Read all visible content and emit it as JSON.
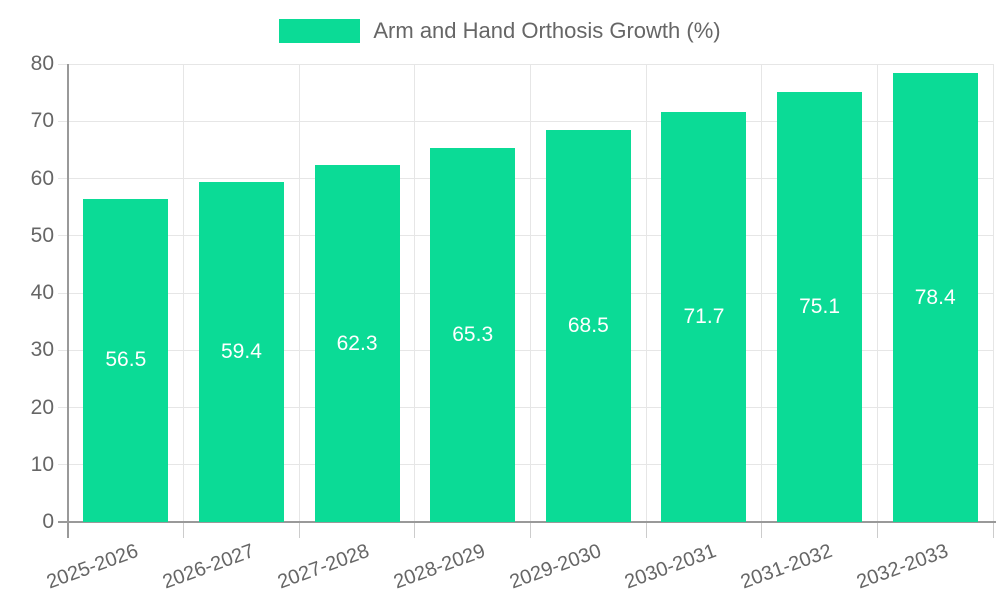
{
  "legend": {
    "label": "Arm and Hand Orthosis Growth (%)"
  },
  "chart_data": {
    "type": "bar",
    "title": "Arm and Hand Orthosis Growth (%)",
    "categories": [
      "2025-2026",
      "2026-2027",
      "2027-2028",
      "2028-2029",
      "2029-2030",
      "2030-2031",
      "2031-2032",
      "2032-2033"
    ],
    "values": [
      56.5,
      59.4,
      62.3,
      65.3,
      68.5,
      71.7,
      75.1,
      78.4
    ],
    "value_labels": [
      "56.5",
      "59.4",
      "62.3",
      "65.3",
      "68.5",
      "71.7",
      "75.1",
      "78.4"
    ],
    "xlabel": "",
    "ylabel": "",
    "ylim": [
      0,
      80
    ],
    "yticks": [
      0,
      10,
      20,
      30,
      40,
      50,
      60,
      70,
      80
    ],
    "grid": true,
    "legend_position": "top",
    "colors": {
      "bar": "#0BDB96",
      "bar_label": "#FFFFFF",
      "axis_line": "#999999",
      "grid_line": "#E6E6E6",
      "tick_mark": "#CCCCCC",
      "tick_text": "#666666",
      "legend_text": "#666666",
      "background": "#FFFFFF"
    }
  }
}
